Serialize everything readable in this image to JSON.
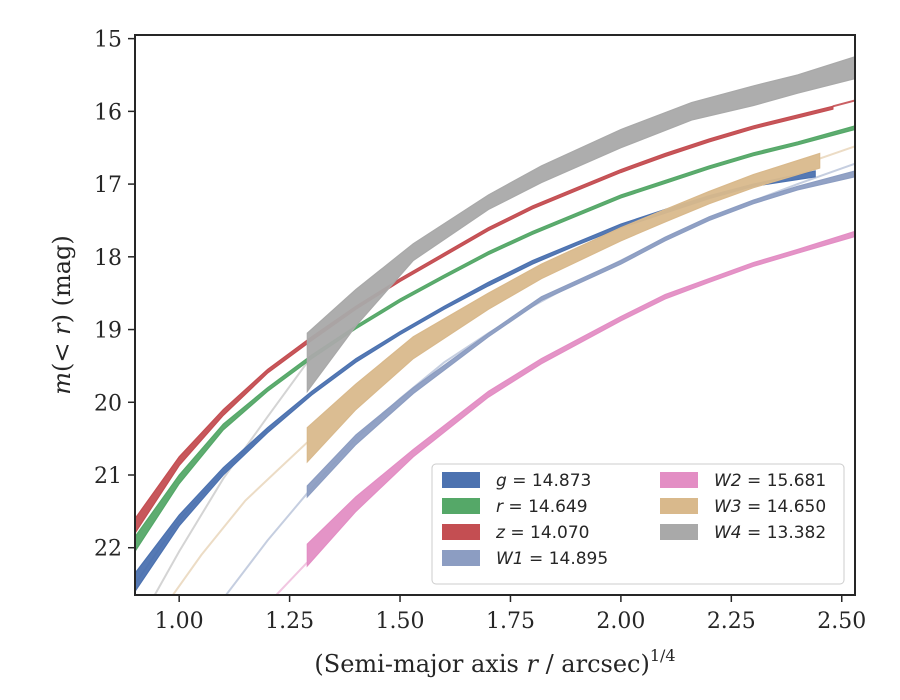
{
  "chart_data": {
    "type": "area",
    "xlabel": "(Semi-major axis r / arcsec)^1/4",
    "xlabel_parts": {
      "open": "(Semi-major axis ",
      "var": "r",
      "mid": " / arcsec)",
      "exp": "1/4"
    },
    "ylabel": "m(<r) (mag)",
    "ylabel_parts": {
      "m": "m",
      "open": "(",
      "lt": "<",
      "r": "r",
      "close": ")",
      "unit": " (mag)"
    },
    "xlim": [
      0.9,
      2.53
    ],
    "ylim": [
      22.65,
      14.95
    ],
    "y_inverted": true,
    "xticks": [
      "1.00",
      "1.25",
      "1.50",
      "1.75",
      "2.00",
      "2.25",
      "2.50"
    ],
    "xtick_values": [
      1.0,
      1.25,
      1.5,
      1.75,
      2.0,
      2.25,
      2.5
    ],
    "yticks": [
      "15",
      "16",
      "17",
      "18",
      "19",
      "20",
      "21",
      "22"
    ],
    "ytick_values": [
      15,
      16,
      17,
      18,
      19,
      20,
      21,
      22
    ],
    "grid": false,
    "legend_placement": "lower-right",
    "series": [
      {
        "band": "g",
        "legend_value": "14.873",
        "color": "#4c72b0",
        "x": [
          0.9,
          1.0,
          1.1,
          1.2,
          1.3,
          1.4,
          1.5,
          1.6,
          1.7,
          1.8,
          1.9,
          2.0,
          2.1,
          2.2,
          2.3,
          2.44
        ],
        "y_lo": [
          22.35,
          21.55,
          20.9,
          20.35,
          19.85,
          19.4,
          19.03,
          18.68,
          18.35,
          18.05,
          17.8,
          17.55,
          17.35,
          17.16,
          17.0,
          16.82
        ],
        "y_hi": [
          22.6,
          21.7,
          21.0,
          20.42,
          19.9,
          19.45,
          19.07,
          18.72,
          18.4,
          18.1,
          17.84,
          17.6,
          17.4,
          17.2,
          17.03,
          16.9
        ],
        "fit_x": [
          0.9,
          1.0,
          1.1,
          1.2
        ],
        "fit_y": [
          22.5,
          21.62,
          20.95,
          20.38
        ]
      },
      {
        "band": "r",
        "legend_value": "14.649",
        "color": "#55a868",
        "x": [
          0.9,
          1.0,
          1.1,
          1.2,
          1.3,
          1.4,
          1.5,
          1.6,
          1.7,
          1.8,
          1.9,
          2.0,
          2.1,
          2.2,
          2.3,
          2.4,
          2.53
        ],
        "y_lo": [
          21.85,
          21.0,
          20.3,
          19.8,
          19.35,
          18.95,
          18.58,
          18.25,
          17.93,
          17.65,
          17.4,
          17.15,
          16.95,
          16.75,
          16.57,
          16.42,
          16.2
        ],
        "y_hi": [
          22.05,
          21.12,
          20.38,
          19.85,
          19.4,
          18.99,
          18.62,
          18.29,
          17.97,
          17.69,
          17.44,
          17.19,
          16.99,
          16.79,
          16.61,
          16.46,
          16.25
        ],
        "fit_x": [],
        "fit_y": []
      },
      {
        "band": "z",
        "legend_value": "14.070",
        "color": "#c44e52",
        "x": [
          0.9,
          1.0,
          1.1,
          1.2,
          1.3,
          1.4,
          1.5,
          1.6,
          1.7,
          1.8,
          1.9,
          2.0,
          2.1,
          2.2,
          2.3,
          2.4,
          2.48
        ],
        "y_lo": [
          21.6,
          20.75,
          20.1,
          19.55,
          19.1,
          18.68,
          18.3,
          17.95,
          17.6,
          17.3,
          17.05,
          16.8,
          16.58,
          16.38,
          16.2,
          16.05,
          15.93
        ],
        "y_hi": [
          21.8,
          20.87,
          20.18,
          19.6,
          19.15,
          18.72,
          18.34,
          17.99,
          17.64,
          17.34,
          17.09,
          16.84,
          16.62,
          16.42,
          16.24,
          16.09,
          15.97
        ],
        "fit_x": [
          2.48,
          2.53
        ],
        "fit_y": [
          15.93,
          15.85
        ]
      },
      {
        "band": "W1",
        "legend_value": "14.895",
        "color": "#8c9dc2",
        "x": [
          1.29,
          1.4,
          1.53,
          1.7,
          1.82,
          2.0,
          2.1,
          2.2,
          2.3,
          2.4,
          2.53
        ],
        "y_lo": [
          21.15,
          20.45,
          19.8,
          19.05,
          18.55,
          18.05,
          17.73,
          17.45,
          17.22,
          17.03,
          16.82
        ],
        "y_hi": [
          21.3,
          20.58,
          19.88,
          19.1,
          18.6,
          18.1,
          17.78,
          17.5,
          17.27,
          17.08,
          16.9
        ],
        "fit_x": [
          1.1,
          1.2,
          1.29,
          1.4,
          1.5,
          1.6,
          1.7,
          1.8,
          1.9,
          2.0,
          2.1,
          2.2,
          2.3,
          2.4,
          2.53
        ],
        "fit_y": [
          22.7,
          21.9,
          21.25,
          20.5,
          19.95,
          19.45,
          19.05,
          18.68,
          18.35,
          18.05,
          17.75,
          17.48,
          17.23,
          17.0,
          16.72
        ]
      },
      {
        "band": "W2",
        "legend_value": "15.681",
        "color": "#e38ec4",
        "x": [
          1.29,
          1.4,
          1.53,
          1.7,
          1.82,
          2.0,
          2.1,
          2.2,
          2.3,
          2.4,
          2.53
        ],
        "y_lo": [
          21.95,
          21.3,
          20.65,
          19.85,
          19.4,
          18.82,
          18.52,
          18.3,
          18.08,
          17.9,
          17.65
        ],
        "y_hi": [
          22.25,
          21.5,
          20.75,
          19.93,
          19.47,
          18.88,
          18.58,
          18.35,
          18.13,
          17.95,
          17.72
        ],
        "fit_x": [
          1.22,
          1.29
        ],
        "fit_y": [
          22.65,
          22.2
        ]
      },
      {
        "band": "W3",
        "legend_value": "14.650",
        "color": "#d9b98c",
        "x": [
          1.29,
          1.4,
          1.53,
          1.7,
          1.82,
          2.0,
          2.1,
          2.2,
          2.3,
          2.45
        ],
        "y_lo": [
          20.35,
          19.75,
          19.1,
          18.5,
          18.1,
          17.6,
          17.35,
          17.1,
          16.87,
          16.58
        ],
        "y_hi": [
          20.82,
          20.1,
          19.4,
          18.72,
          18.3,
          17.78,
          17.52,
          17.27,
          17.05,
          16.78
        ],
        "fit_x": [
          0.98,
          1.05,
          1.15,
          1.22,
          1.29,
          2.45,
          2.53
        ],
        "fit_y": [
          22.7,
          22.1,
          21.35,
          20.95,
          20.55,
          16.65,
          16.48
        ]
      },
      {
        "band": "W4",
        "legend_value": "13.382",
        "color": "#a9a9a9",
        "x": [
          1.29,
          1.4,
          1.53,
          1.7,
          1.82,
          2.0,
          2.16,
          2.3,
          2.4,
          2.53
        ],
        "y_lo": [
          19.05,
          18.45,
          17.82,
          17.15,
          16.75,
          16.25,
          15.88,
          15.65,
          15.5,
          15.25
        ],
        "y_hi": [
          19.85,
          18.95,
          18.05,
          17.35,
          16.98,
          16.5,
          16.12,
          15.92,
          15.75,
          15.55
        ],
        "fit_x": [
          0.94,
          1.0,
          1.1,
          1.2,
          1.29
        ],
        "fit_y": [
          22.7,
          22.05,
          21.05,
          20.2,
          19.45
        ]
      }
    ]
  }
}
